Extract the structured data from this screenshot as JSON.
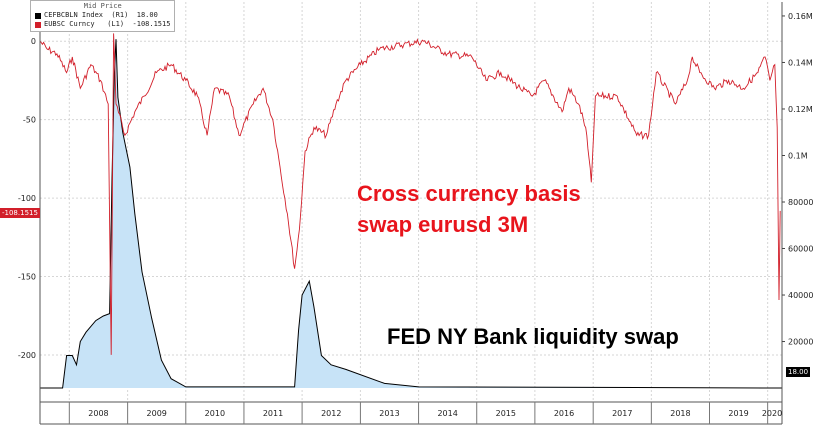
{
  "chart_data": {
    "type": "area",
    "legend": {
      "header": "Mid Price",
      "items": [
        {
          "name": "CEFBCBLN Index  (R1)",
          "value": "18.00",
          "color": "#000000"
        },
        {
          "name": "EUBSC Curncy   (L1)",
          "value": "-108.1515",
          "color": "#d21f2a"
        }
      ]
    },
    "annotations": [
      "Cross currency basis",
      "swap eurusd 3M",
      "FED NY Bank liquidity swap"
    ],
    "x": {
      "type": "date",
      "range": [
        "2007-07-01",
        "2020-03-31"
      ],
      "tick_labels": [
        "2008",
        "2009",
        "2010",
        "2011",
        "2012",
        "2013",
        "2014",
        "2015",
        "2016",
        "2017",
        "2018",
        "2019",
        "2020"
      ]
    },
    "y_left": {
      "range": [
        -230,
        25
      ],
      "ticks": [
        0,
        -50,
        -100,
        -150,
        -200
      ],
      "tick_labels": [
        "0",
        "-50",
        "-100",
        "-150",
        "-200"
      ]
    },
    "y_right": {
      "range": [
        -6000,
        166000
      ],
      "ticks": [
        20000,
        40000,
        60000,
        80000,
        100000,
        120000,
        140000,
        160000
      ],
      "tick_labels": [
        "20000",
        "40000",
        "60000",
        "80000",
        "0.1M",
        "0.12M",
        "0.14M",
        "0.16M"
      ]
    },
    "series": [
      {
        "name": "EUBSC Curncy",
        "axis": "left",
        "color": "#d21f2a",
        "last_value": "-108.1515",
        "points": [
          [
            "2007-07-01",
            0
          ],
          [
            "2007-08-15",
            -5
          ],
          [
            "2007-10-15",
            -8
          ],
          [
            "2007-12-15",
            -20
          ],
          [
            "2008-01-20",
            -10
          ],
          [
            "2008-03-10",
            -30
          ],
          [
            "2008-05-15",
            -15
          ],
          [
            "2008-07-15",
            -25
          ],
          [
            "2008-09-01",
            -40
          ],
          [
            "2008-09-20",
            -200
          ],
          [
            "2008-10-05",
            5
          ],
          [
            "2008-10-20",
            -40
          ],
          [
            "2008-12-15",
            -60
          ],
          [
            "2009-02-15",
            -45
          ],
          [
            "2009-04-15",
            -35
          ],
          [
            "2009-07-01",
            -20
          ],
          [
            "2009-10-01",
            -15
          ],
          [
            "2010-01-01",
            -25
          ],
          [
            "2010-03-15",
            -35
          ],
          [
            "2010-05-15",
            -60
          ],
          [
            "2010-07-01",
            -30
          ],
          [
            "2010-10-01",
            -35
          ],
          [
            "2010-12-01",
            -60
          ],
          [
            "2011-03-01",
            -40
          ],
          [
            "2011-05-01",
            -30
          ],
          [
            "2011-07-01",
            -50
          ],
          [
            "2011-08-15",
            -80
          ],
          [
            "2011-10-01",
            -110
          ],
          [
            "2011-11-15",
            -145
          ],
          [
            "2011-12-15",
            -120
          ],
          [
            "2012-01-20",
            -70
          ],
          [
            "2012-03-15",
            -55
          ],
          [
            "2012-06-01",
            -60
          ],
          [
            "2012-08-01",
            -40
          ],
          [
            "2012-10-01",
            -25
          ],
          [
            "2013-01-01",
            -15
          ],
          [
            "2013-05-01",
            -5
          ],
          [
            "2013-10-01",
            -2
          ],
          [
            "2014-02-01",
            0
          ],
          [
            "2014-07-01",
            -8
          ],
          [
            "2014-12-01",
            -10
          ],
          [
            "2015-03-01",
            -25
          ],
          [
            "2015-06-01",
            -20
          ],
          [
            "2015-10-01",
            -30
          ],
          [
            "2015-12-15",
            -35
          ],
          [
            "2016-03-01",
            -25
          ],
          [
            "2016-06-20",
            -45
          ],
          [
            "2016-08-01",
            -30
          ],
          [
            "2016-10-01",
            -40
          ],
          [
            "2016-11-15",
            -55
          ],
          [
            "2016-12-20",
            -90
          ],
          [
            "2017-01-15",
            -35
          ],
          [
            "2017-06-01",
            -35
          ],
          [
            "2017-10-01",
            -60
          ],
          [
            "2017-12-15",
            -60
          ],
          [
            "2018-02-01",
            -20
          ],
          [
            "2018-06-01",
            -40
          ],
          [
            "2018-08-15",
            -25
          ],
          [
            "2018-09-15",
            -10
          ],
          [
            "2018-11-01",
            -20
          ],
          [
            "2019-02-01",
            -30
          ],
          [
            "2019-05-01",
            -25
          ],
          [
            "2019-08-01",
            -30
          ],
          [
            "2019-11-01",
            -20
          ],
          [
            "2019-12-15",
            -10
          ],
          [
            "2020-01-15",
            -25
          ],
          [
            "2020-02-15",
            -15
          ],
          [
            "2020-03-01",
            -55
          ],
          [
            "2020-03-12",
            -165
          ],
          [
            "2020-03-20",
            -108.15
          ]
        ]
      },
      {
        "name": "CEFBCBLN Index",
        "axis": "right",
        "color": "#000000",
        "fill": "#c7e3f7",
        "last_value": "18.00",
        "points": [
          [
            "2007-07-01",
            0
          ],
          [
            "2007-11-20",
            0
          ],
          [
            "2007-12-15",
            14000
          ],
          [
            "2008-01-20",
            14000
          ],
          [
            "2008-02-15",
            10000
          ],
          [
            "2008-03-10",
            20000
          ],
          [
            "2008-04-15",
            24000
          ],
          [
            "2008-06-15",
            29000
          ],
          [
            "2008-08-01",
            31000
          ],
          [
            "2008-09-10",
            32000
          ],
          [
            "2008-09-25",
            90000
          ],
          [
            "2008-10-10",
            135000
          ],
          [
            "2008-10-20",
            150000
          ],
          [
            "2008-11-01",
            125000
          ],
          [
            "2008-12-01",
            110000
          ],
          [
            "2009-01-15",
            95000
          ],
          [
            "2009-02-15",
            75000
          ],
          [
            "2009-04-01",
            50000
          ],
          [
            "2009-06-01",
            30000
          ],
          [
            "2009-08-01",
            12000
          ],
          [
            "2009-10-01",
            4000
          ],
          [
            "2010-01-01",
            500
          ],
          [
            "2011-11-15",
            500
          ],
          [
            "2011-12-10",
            25000
          ],
          [
            "2012-01-01",
            40000
          ],
          [
            "2012-02-15",
            46000
          ],
          [
            "2012-03-15",
            35000
          ],
          [
            "2012-05-01",
            14000
          ],
          [
            "2012-07-01",
            10000
          ],
          [
            "2012-10-01",
            8000
          ],
          [
            "2013-06-01",
            2000
          ],
          [
            "2014-01-01",
            500
          ],
          [
            "2020-03-31",
            18
          ]
        ]
      }
    ]
  }
}
